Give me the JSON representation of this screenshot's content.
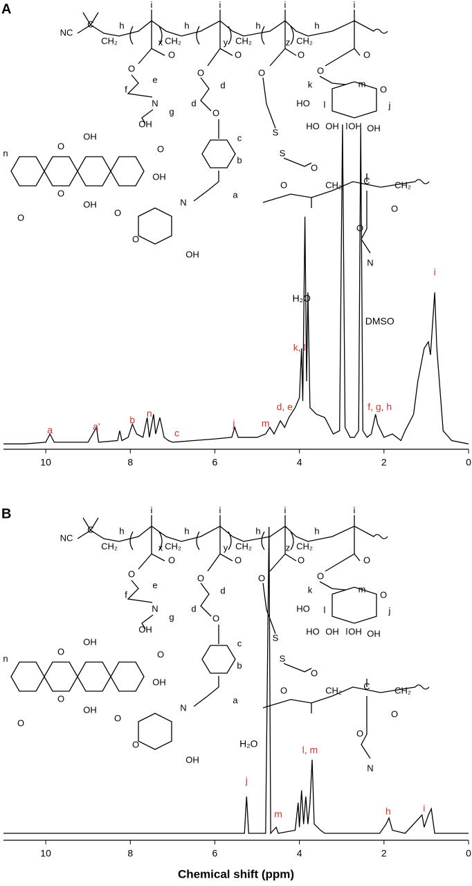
{
  "chart_data": [
    {
      "type": "line",
      "panel_label": "A",
      "color": "#000000",
      "xlim": [
        11,
        0
      ],
      "xticks": [
        10,
        8,
        6,
        4,
        2,
        0
      ],
      "ylim": [
        0,
        100
      ],
      "x": [
        11,
        10.5,
        10,
        9.9,
        9.8,
        9,
        8.8,
        8.75,
        8.3,
        8.25,
        8.2,
        8.05,
        7.95,
        7.85,
        7.7,
        7.6,
        7.55,
        7.45,
        7.4,
        7.3,
        7.2,
        7.1,
        7.0,
        6.5,
        6.0,
        5.6,
        5.53,
        5.45,
        5.0,
        4.8,
        4.7,
        4.6,
        4.45,
        4.35,
        4.25,
        4.1,
        4.0,
        3.95,
        3.92,
        3.87,
        3.83,
        3.8,
        3.75,
        3.6,
        3.4,
        3.2,
        3.05,
        2.98,
        2.92,
        2.8,
        2.7,
        2.6,
        2.55,
        2.5,
        2.4,
        2.3,
        2.2,
        2.15,
        2.0,
        1.8,
        1.6,
        1.5,
        1.3,
        1.2,
        1.05,
        0.95,
        0.9,
        0.8,
        0.75,
        0.6,
        0.4,
        0
      ],
      "values": [
        1,
        1,
        1.5,
        4,
        1.5,
        1.5,
        6,
        1.5,
        2,
        5,
        2,
        3,
        7,
        4,
        3,
        9,
        3,
        10,
        4,
        9,
        3,
        2,
        1.5,
        2,
        2.5,
        3,
        6,
        3,
        3,
        4,
        6,
        4,
        8,
        6,
        9,
        12,
        15,
        30,
        14,
        70,
        20,
        47,
        12,
        10,
        9,
        4,
        5,
        98,
        6,
        3,
        3,
        5,
        97,
        5,
        3,
        4,
        10,
        7,
        3,
        4,
        2,
        5,
        10,
        20,
        30,
        32,
        28,
        47,
        30,
        5,
        2,
        1
      ],
      "annotations": [
        {
          "text": "a",
          "x": 9.9,
          "y": 5,
          "color": "#d6322b"
        },
        {
          "text": "a'",
          "x": 8.8,
          "y": 6,
          "color": "#d6322b"
        },
        {
          "text": "b",
          "x": 7.95,
          "y": 8,
          "color": "#d6322b"
        },
        {
          "text": "n",
          "x": 7.55,
          "y": 10,
          "color": "#d6322b"
        },
        {
          "text": "c",
          "x": 6.9,
          "y": 4,
          "color": "#d6322b"
        },
        {
          "text": "j",
          "x": 5.55,
          "y": 7,
          "color": "#d6322b"
        },
        {
          "text": "m",
          "x": 4.8,
          "y": 7,
          "color": "#d6322b"
        },
        {
          "text": "d, e",
          "x": 4.35,
          "y": 12,
          "color": "#d6322b"
        },
        {
          "text": "k, l",
          "x": 4.0,
          "y": 30,
          "color": "#d6322b"
        },
        {
          "text": "f, g, h",
          "x": 2.1,
          "y": 12,
          "color": "#d6322b"
        },
        {
          "text": "i",
          "x": 0.8,
          "y": 53,
          "color": "#d6322b"
        },
        {
          "text": "H₂O",
          "x": 3.95,
          "y": 45,
          "color": "#000000"
        },
        {
          "text": "DMSO",
          "x": 2.1,
          "y": 38,
          "color": "#000000"
        }
      ]
    },
    {
      "type": "line",
      "panel_label": "B",
      "color": "#000000",
      "xlim": [
        11,
        0
      ],
      "xticks": [
        10,
        8,
        6,
        4,
        2,
        0
      ],
      "ylim": [
        0,
        100
      ],
      "xlabel": "Chemical shift (ppm)",
      "x": [
        11,
        6,
        5.3,
        5.25,
        5.2,
        4.8,
        4.72,
        4.68,
        4.55,
        4.5,
        4.1,
        4.03,
        4.0,
        3.95,
        3.9,
        3.85,
        3.8,
        3.75,
        3.7,
        3.65,
        3.5,
        3.4,
        2.1,
        1.95,
        1.88,
        1.8,
        1.5,
        1.1,
        1.05,
        0.95,
        0.88,
        0.8,
        0
      ],
      "values": [
        0,
        0,
        0,
        12,
        0,
        0,
        100,
        0,
        2,
        0,
        1,
        10,
        2,
        14,
        3,
        12,
        3,
        10,
        24,
        3,
        1,
        0,
        0,
        3,
        5,
        1,
        0,
        6,
        2,
        6,
        8,
        0,
        0
      ],
      "annotations": [
        {
          "text": "j",
          "x": 5.25,
          "y": 17,
          "color": "#d6322b"
        },
        {
          "text": "m",
          "x": 4.5,
          "y": 6,
          "color": "#d6322b"
        },
        {
          "text": "l, m",
          "x": 3.75,
          "y": 27,
          "color": "#d6322b"
        },
        {
          "text": "h",
          "x": 1.9,
          "y": 7,
          "color": "#d6322b"
        },
        {
          "text": "i",
          "x": 1.05,
          "y": 8,
          "color": "#d6322b"
        },
        {
          "text": "H₂O",
          "x": 5.2,
          "y": 29,
          "color": "#000000"
        }
      ]
    }
  ],
  "structure": {
    "labels": [
      "NC",
      "C",
      "h",
      "CH₂",
      "i",
      "x",
      "h",
      "CH₂",
      "i",
      "y",
      "h",
      "CH₂",
      "i",
      "z",
      "h",
      "CH₂",
      "i",
      "O",
      "O",
      "e",
      "f",
      "N",
      "g",
      "OH",
      "O",
      "OH",
      "OH",
      "O",
      "n",
      "O",
      "OH",
      "O",
      "O",
      "O",
      "OH",
      "N",
      "a",
      "c",
      "b",
      "O",
      "O",
      "d",
      "d",
      "O",
      "O",
      "O",
      "S",
      "S",
      "O",
      "O",
      "CH₂",
      "C",
      "CH₂",
      "O",
      "O",
      "N",
      "O",
      "O",
      "m",
      "k",
      "O",
      "HO",
      "l",
      "j",
      "HO",
      "OH",
      "l",
      "OH",
      "OH"
    ]
  }
}
